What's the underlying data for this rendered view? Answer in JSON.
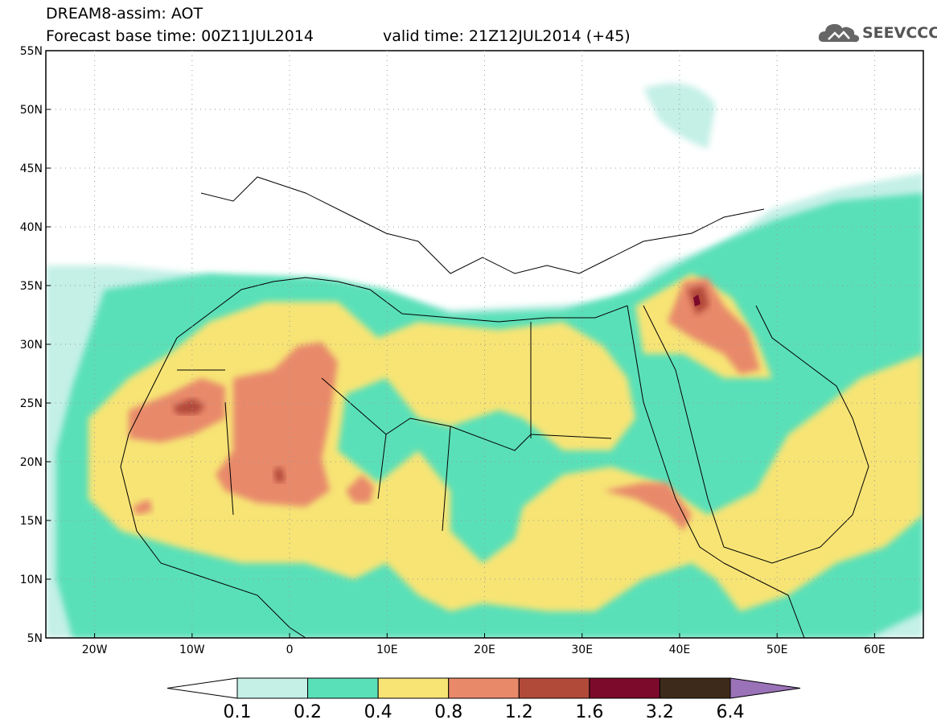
{
  "header": {
    "title": "DREAM8-assim: AOT",
    "base_time": "Forecast base time: 00Z11JUL2014",
    "valid_time": "valid time: 21Z12JUL2014 (+45)"
  },
  "logo": {
    "text": "SEEVCCC",
    "icon": "cloud-icon"
  },
  "map": {
    "lat_range": [
      5,
      55
    ],
    "lon_range": [
      -25,
      65
    ],
    "lat_labels": [
      "55N",
      "50N",
      "45N",
      "40N",
      "35N",
      "30N",
      "25N",
      "20N",
      "15N",
      "10N",
      "5N"
    ],
    "lat_values": [
      55,
      50,
      45,
      40,
      35,
      30,
      25,
      20,
      15,
      10,
      5
    ],
    "lon_labels": [
      "20W",
      "10W",
      "0",
      "10E",
      "20E",
      "30E",
      "40E",
      "50E",
      "60E"
    ],
    "lon_values": [
      -20,
      -10,
      0,
      10,
      20,
      30,
      40,
      50,
      60
    ],
    "grid": "dotted"
  },
  "colorbar": {
    "labels": [
      "0.1",
      "0.2",
      "0.4",
      "0.8",
      "1.2",
      "1.6",
      "3.2",
      "6.4"
    ],
    "colors": [
      "#ffffff",
      "#c4f0e6",
      "#5ae0b8",
      "#f7e475",
      "#e8896a",
      "#b24a3a",
      "#7c0a2a",
      "#3e2a1a",
      "#9a72b8"
    ]
  }
}
